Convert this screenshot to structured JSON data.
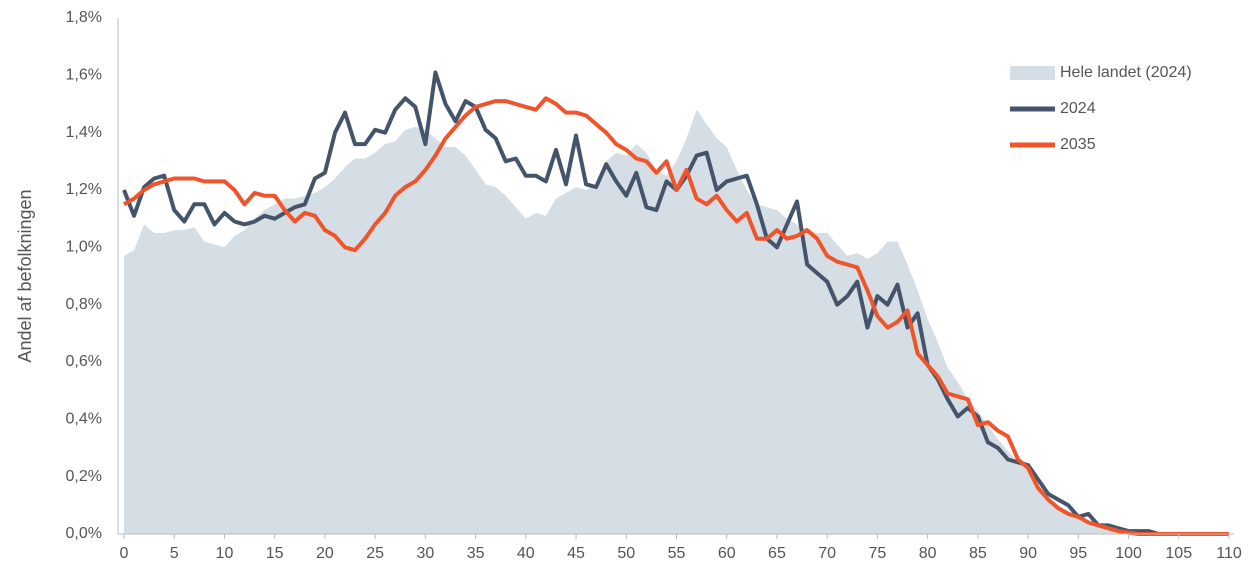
{
  "chart_data": {
    "type": "line",
    "y_label": "Andel af befolkningen",
    "x": [
      0,
      1,
      2,
      3,
      4,
      5,
      6,
      7,
      8,
      9,
      10,
      11,
      12,
      13,
      14,
      15,
      16,
      17,
      18,
      19,
      20,
      21,
      22,
      23,
      24,
      25,
      26,
      27,
      28,
      29,
      30,
      31,
      32,
      33,
      34,
      35,
      36,
      37,
      38,
      39,
      40,
      41,
      42,
      43,
      44,
      45,
      46,
      47,
      48,
      49,
      50,
      51,
      52,
      53,
      54,
      55,
      56,
      57,
      58,
      59,
      60,
      61,
      62,
      63,
      64,
      65,
      66,
      67,
      68,
      69,
      70,
      71,
      72,
      73,
      74,
      75,
      76,
      77,
      78,
      79,
      80,
      81,
      82,
      83,
      84,
      85,
      86,
      87,
      88,
      89,
      90,
      91,
      92,
      93,
      94,
      95,
      96,
      97,
      98,
      99,
      100,
      101,
      102,
      103,
      104,
      105,
      106,
      107,
      108,
      109,
      110
    ],
    "xlim": [
      0,
      110
    ],
    "xticks": [
      0,
      5,
      10,
      15,
      20,
      25,
      30,
      35,
      40,
      45,
      50,
      55,
      60,
      65,
      70,
      75,
      80,
      85,
      90,
      95,
      100,
      105,
      110
    ],
    "ylim": [
      0,
      1.8
    ],
    "yticks": [
      {
        "value": 0,
        "label": "0,0%"
      },
      {
        "value": 0.2,
        "label": "0,2%"
      },
      {
        "value": 0.4,
        "label": "0,4%"
      },
      {
        "value": 0.6,
        "label": "0,6%"
      },
      {
        "value": 0.8,
        "label": "0,8%"
      },
      {
        "value": 1.0,
        "label": "1,0%"
      },
      {
        "value": 1.2,
        "label": "1,2%"
      },
      {
        "value": 1.4,
        "label": "1,4%"
      },
      {
        "value": 1.6,
        "label": "1,6%"
      },
      {
        "value": 1.8,
        "label": "1,8%"
      }
    ],
    "grid": false,
    "legend": "top-right",
    "series": [
      {
        "name": "Hele landet (2024)",
        "kind": "area",
        "color": "#d6dee5",
        "values": [
          0.97,
          0.99,
          1.08,
          1.05,
          1.05,
          1.06,
          1.06,
          1.07,
          1.02,
          1.01,
          1.0,
          1.04,
          1.06,
          1.1,
          1.13,
          1.15,
          1.17,
          1.17,
          1.18,
          1.19,
          1.21,
          1.24,
          1.28,
          1.31,
          1.31,
          1.33,
          1.36,
          1.37,
          1.41,
          1.42,
          1.41,
          1.38,
          1.35,
          1.35,
          1.32,
          1.27,
          1.22,
          1.21,
          1.18,
          1.14,
          1.1,
          1.12,
          1.11,
          1.17,
          1.19,
          1.21,
          1.2,
          1.22,
          1.3,
          1.33,
          1.32,
          1.36,
          1.33,
          1.27,
          1.25,
          1.3,
          1.38,
          1.48,
          1.43,
          1.38,
          1.35,
          1.27,
          1.2,
          1.15,
          1.14,
          1.13,
          1.1,
          1.08,
          1.06,
          1.05,
          1.05,
          1.01,
          0.97,
          0.98,
          0.96,
          0.98,
          1.02,
          1.02,
          0.94,
          0.85,
          0.75,
          0.67,
          0.58,
          0.53,
          0.47,
          0.43,
          0.38,
          0.33,
          0.29,
          0.25,
          0.22,
          0.17,
          0.13,
          0.1,
          0.08,
          0.06,
          0.04,
          0.03,
          0.02,
          0.015,
          0.01,
          0.005,
          0.005,
          0,
          0,
          0,
          0,
          0,
          0,
          0,
          0
        ]
      },
      {
        "name": "2024",
        "kind": "line",
        "color": "#44546a",
        "values": [
          1.2,
          1.11,
          1.21,
          1.24,
          1.25,
          1.13,
          1.09,
          1.15,
          1.15,
          1.08,
          1.12,
          1.09,
          1.08,
          1.09,
          1.11,
          1.1,
          1.12,
          1.14,
          1.15,
          1.24,
          1.26,
          1.4,
          1.47,
          1.36,
          1.36,
          1.41,
          1.4,
          1.48,
          1.52,
          1.49,
          1.36,
          1.61,
          1.5,
          1.44,
          1.51,
          1.49,
          1.41,
          1.38,
          1.3,
          1.31,
          1.25,
          1.25,
          1.23,
          1.34,
          1.22,
          1.39,
          1.22,
          1.21,
          1.29,
          1.23,
          1.18,
          1.26,
          1.14,
          1.13,
          1.23,
          1.2,
          1.25,
          1.32,
          1.33,
          1.2,
          1.23,
          1.24,
          1.25,
          1.15,
          1.03,
          1.0,
          1.08,
          1.16,
          0.94,
          0.91,
          0.88,
          0.8,
          0.83,
          0.88,
          0.72,
          0.83,
          0.8,
          0.87,
          0.72,
          0.77,
          0.59,
          0.54,
          0.47,
          0.41,
          0.44,
          0.41,
          0.32,
          0.3,
          0.26,
          0.25,
          0.24,
          0.19,
          0.14,
          0.12,
          0.1,
          0.06,
          0.07,
          0.03,
          0.03,
          0.02,
          0.01,
          0.01,
          0.01,
          0,
          0,
          0,
          0,
          0,
          0,
          0,
          0
        ]
      },
      {
        "name": "2035",
        "kind": "line",
        "color": "#f0542a",
        "values": [
          1.15,
          1.17,
          1.2,
          1.22,
          1.23,
          1.24,
          1.24,
          1.24,
          1.23,
          1.23,
          1.23,
          1.2,
          1.15,
          1.19,
          1.18,
          1.18,
          1.13,
          1.09,
          1.12,
          1.11,
          1.06,
          1.04,
          1.0,
          0.99,
          1.03,
          1.08,
          1.12,
          1.18,
          1.21,
          1.23,
          1.27,
          1.32,
          1.38,
          1.42,
          1.46,
          1.49,
          1.5,
          1.51,
          1.51,
          1.5,
          1.49,
          1.48,
          1.52,
          1.5,
          1.47,
          1.47,
          1.46,
          1.43,
          1.4,
          1.36,
          1.34,
          1.31,
          1.3,
          1.26,
          1.3,
          1.2,
          1.27,
          1.17,
          1.15,
          1.18,
          1.13,
          1.09,
          1.12,
          1.03,
          1.03,
          1.06,
          1.03,
          1.04,
          1.06,
          1.03,
          0.97,
          0.95,
          0.94,
          0.93,
          0.85,
          0.76,
          0.72,
          0.74,
          0.78,
          0.63,
          0.59,
          0.55,
          0.49,
          0.48,
          0.47,
          0.38,
          0.39,
          0.36,
          0.34,
          0.26,
          0.23,
          0.16,
          0.12,
          0.09,
          0.07,
          0.06,
          0.04,
          0.03,
          0.02,
          0.01,
          0.005,
          0,
          0,
          0,
          0,
          0,
          0,
          0,
          0,
          0,
          0
        ]
      }
    ]
  }
}
